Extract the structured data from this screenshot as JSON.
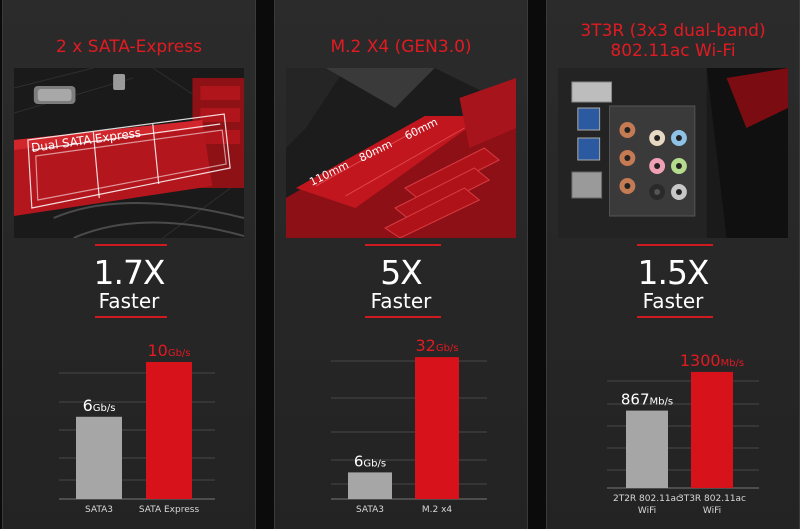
{
  "panels": [
    {
      "title_lines": [
        "2 x SATA-Express"
      ],
      "photo_label": "Dual SATA Express",
      "speedup": "1.7X",
      "speedup_word": "Faster"
    },
    {
      "title_lines": [
        "M.2 X4 (GEN3.0)"
      ],
      "photo_labels": [
        "110mm",
        "80mm",
        "60mm"
      ],
      "speedup": "5X",
      "speedup_word": "Faster"
    },
    {
      "title_lines": [
        "3T3R (3x3 dual-band)",
        "802.11ac Wi-Fi"
      ],
      "speedup": "1.5X",
      "speedup_word": "Faster"
    }
  ],
  "colors": {
    "accent": "#e11b22",
    "bar_baseline": "#a6a6a6",
    "bar_highlight": "#d7121b"
  },
  "chart_data": [
    {
      "type": "bar",
      "categories": [
        "SATA3",
        "SATA Express"
      ],
      "values": [
        6,
        10
      ],
      "value_numbers": [
        "6",
        "10"
      ],
      "value_units": [
        "Gb/s",
        "Gb/s"
      ],
      "ylim": [
        0,
        10.8
      ]
    },
    {
      "type": "bar",
      "categories": [
        "SATA3",
        "M.2 x4"
      ],
      "values": [
        6,
        32
      ],
      "value_numbers": [
        "6",
        "32"
      ],
      "value_units": [
        "Gb/s",
        "Gb/s"
      ],
      "ylim": [
        0,
        34.5
      ]
    },
    {
      "type": "bar",
      "categories": [
        "2T2R 802.11ac WiFi",
        "3T3R 802.11ac WiFi"
      ],
      "category_lines": [
        [
          "2T2R 802.11ac",
          "WiFi"
        ],
        [
          "3T3R 802.11ac",
          "WiFi"
        ]
      ],
      "values": [
        867,
        1300
      ],
      "value_numbers": [
        "867",
        "1300"
      ],
      "value_units": [
        "Mb/s",
        "Mb/s"
      ],
      "ylim": [
        0,
        1400
      ]
    }
  ]
}
